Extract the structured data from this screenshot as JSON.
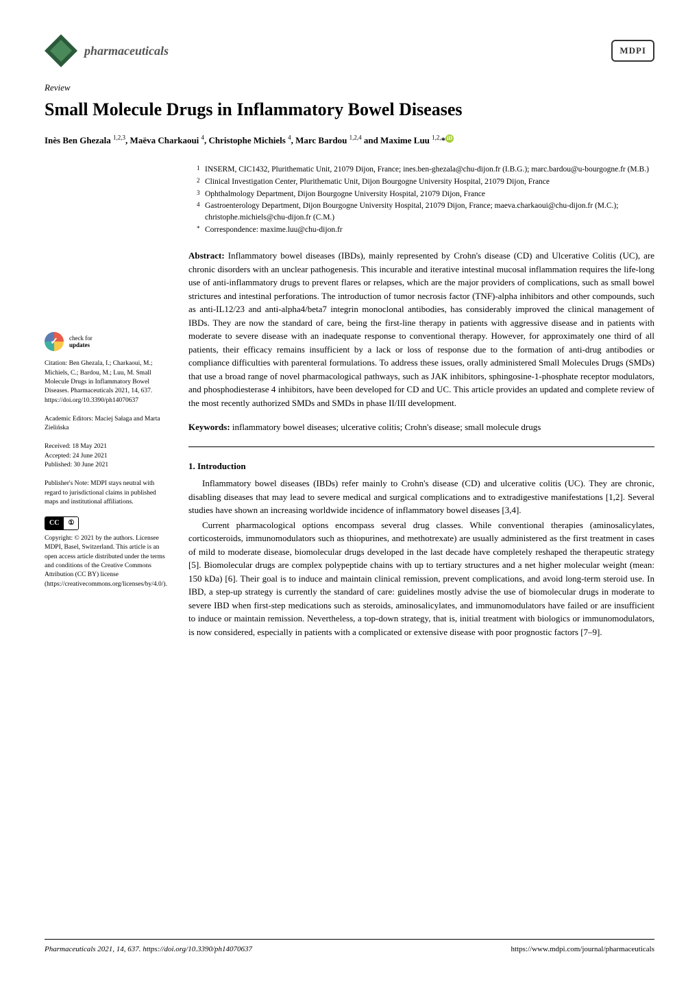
{
  "journal": {
    "name": "pharmaceuticals",
    "publisher": "MDPI"
  },
  "article": {
    "type": "Review",
    "title": "Small Molecule Drugs in Inflammatory Bowel Diseases",
    "authors_html": "Inès Ben Ghezala <sup>1,2,3</sup>, Maëva Charkaoui <sup>4</sup>, Christophe Michiels <sup>4</sup>, Marc Bardou <sup>1,2,4</sup> and Maxime Luu <sup>1,2,</sup>*"
  },
  "affiliations": [
    {
      "num": "1",
      "text": "INSERM, CIC1432, Plurithematic Unit, 21079 Dijon, France; ines.ben-ghezala@chu-dijon.fr (I.B.G.); marc.bardou@u-bourgogne.fr (M.B.)"
    },
    {
      "num": "2",
      "text": "Clinical Investigation Center, Plurithematic Unit, Dijon Bourgogne University Hospital, 21079 Dijon, France"
    },
    {
      "num": "3",
      "text": "Ophthalmology Department, Dijon Bourgogne University Hospital, 21079 Dijon, France"
    },
    {
      "num": "4",
      "text": "Gastroenterology Department, Dijon Bourgogne University Hospital, 21079 Dijon, France; maeva.charkaoui@chu-dijon.fr (M.C.); christophe.michiels@chu-dijon.fr (C.M.)"
    },
    {
      "num": "*",
      "text": "Correspondence: maxime.luu@chu-dijon.fr"
    }
  ],
  "abstract": {
    "label": "Abstract:",
    "text": "Inflammatory bowel diseases (IBDs), mainly represented by Crohn's disease (CD) and Ulcerative Colitis (UC), are chronic disorders with an unclear pathogenesis. This incurable and iterative intestinal mucosal inflammation requires the life-long use of anti-inflammatory drugs to prevent flares or relapses, which are the major providers of complications, such as small bowel strictures and intestinal perforations. The introduction of tumor necrosis factor (TNF)-alpha inhibitors and other compounds, such as anti-IL12/23 and anti-alpha4/beta7 integrin monoclonal antibodies, has considerably improved the clinical management of IBDs. They are now the standard of care, being the first-line therapy in patients with aggressive disease and in patients with moderate to severe disease with an inadequate response to conventional therapy. However, for approximately one third of all patients, their efficacy remains insufficient by a lack or loss of response due to the formation of anti-drug antibodies or compliance difficulties with parenteral formulations. To address these issues, orally administered Small Molecules Drugs (SMDs) that use a broad range of novel pharmacological pathways, such as JAK inhibitors, sphingosine-1-phosphate receptor modulators, and phosphodiesterase 4 inhibitors, have been developed for CD and UC. This article provides an updated and complete review of the most recently authorized SMDs and SMDs in phase II/III development."
  },
  "keywords": {
    "label": "Keywords:",
    "text": "inflammatory bowel diseases; ulcerative colitis; Crohn's disease; small molecule drugs"
  },
  "section1": {
    "title": "1. Introduction",
    "p1": "Inflammatory bowel diseases (IBDs) refer mainly to Crohn's disease (CD) and ulcerative colitis (UC). They are chronic, disabling diseases that may lead to severe medical and surgical complications and to extradigestive manifestations [1,2]. Several studies have shown an increasing worldwide incidence of inflammatory bowel diseases [3,4].",
    "p2": "Current pharmacological options encompass several drug classes. While conventional therapies (aminosalicylates, corticosteroids, immunomodulators such as thiopurines, and methotrexate) are usually administered as the first treatment in cases of mild to moderate disease, biomolecular drugs developed in the last decade have completely reshaped the therapeutic strategy [5]. Biomolecular drugs are complex polypeptide chains with up to tertiary structures and a net higher molecular weight (mean: 150 kDa) [6]. Their goal is to induce and maintain clinical remission, prevent complications, and avoid long-term steroid use. In IBD, a step-up strategy is currently the standard of care: guidelines mostly advise the use of biomolecular drugs in moderate to severe IBD when first-step medications such as steroids, aminosalicylates, and immunomodulators have failed or are insufficient to induce or maintain remission. Nevertheless, a top-down strategy, that is, initial treatment with biologics or immunomodulators, is now considered, especially in patients with a complicated or extensive disease with poor prognostic factors [7–9]."
  },
  "sidebar": {
    "check_updates_1": "check for",
    "check_updates_2": "updates",
    "citation": "Citation: Ben Ghezala, I.; Charkaoui, M.; Michiels, C.; Bardou, M.; Luu, M. Small Molecule Drugs in Inflammatory Bowel Diseases. Pharmaceuticals 2021, 14, 637. https://doi.org/10.3390/ph14070637",
    "editors": "Academic Editors: Maciej Sałaga and Marta Zielińska",
    "received": "Received: 18 May 2021",
    "accepted": "Accepted: 24 June 2021",
    "published": "Published: 30 June 2021",
    "publisher_note": "Publisher's Note: MDPI stays neutral with regard to jurisdictional claims in published maps and institutional affiliations.",
    "copyright": "Copyright: © 2021 by the authors. Licensee MDPI, Basel, Switzerland. This article is an open access article distributed under the terms and conditions of the Creative Commons Attribution (CC BY) license (https://creativecommons.org/licenses/by/4.0/)."
  },
  "footer": {
    "left": "Pharmaceuticals 2021, 14, 637. https://doi.org/10.3390/ph14070637",
    "right": "https://www.mdpi.com/journal/pharmaceuticals"
  },
  "colors": {
    "link": "#4a7db5",
    "background": "#ffffff"
  }
}
